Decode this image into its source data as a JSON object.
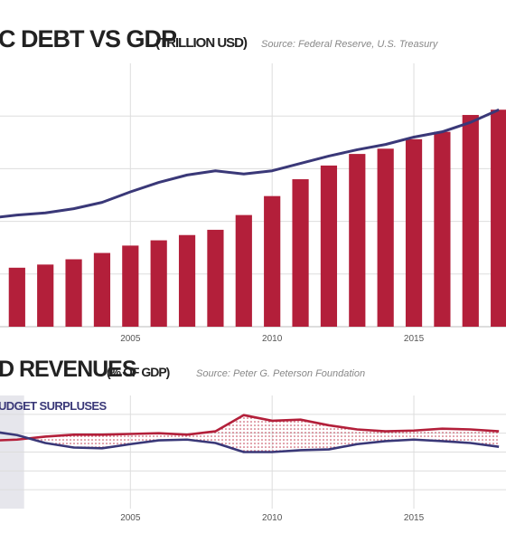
{
  "chart_data": [
    {
      "type": "bar_line",
      "title": "C DEBT VS GDP",
      "subtitle": "(TRILLION USD)",
      "source": "Source: Federal Reserve, U.S. Treasury",
      "x": [
        2000,
        2001,
        2002,
        2003,
        2004,
        2005,
        2006,
        2007,
        2008,
        2009,
        2010,
        2011,
        2012,
        2013,
        2014,
        2015,
        2016,
        2017,
        2018
      ],
      "series": [
        {
          "kind": "bar",
          "color": "#b31f3a",
          "values": [
            null,
            5.6,
            5.9,
            6.4,
            7.0,
            7.7,
            8.2,
            8.7,
            9.2,
            10.6,
            12.4,
            14.0,
            15.3,
            16.4,
            16.9,
            17.8,
            18.5,
            20.1,
            20.6
          ]
        },
        {
          "kind": "line",
          "color": "#3a3878",
          "values": [
            10.3,
            10.6,
            10.8,
            11.2,
            11.8,
            12.8,
            13.7,
            14.4,
            14.8,
            14.5,
            14.8,
            15.5,
            16.2,
            16.8,
            17.3,
            18.0,
            18.5,
            19.4,
            20.6
          ]
        }
      ],
      "xlim": [
        2000.4,
        2018.25
      ],
      "xticks": [
        2005,
        2010,
        2015
      ],
      "ylim": [
        0,
        25
      ],
      "gridlines": [
        0,
        5,
        10,
        15,
        20
      ]
    },
    {
      "type": "line",
      "title": "D REVENUES",
      "subtitle": "(% OF GDP)",
      "source": "Source: Peter G. Peterson Foundation",
      "annotation": "UDGET SURPLUSES",
      "shaded_region": [
        2000.4,
        2001.25
      ],
      "x": [
        2000,
        2001,
        2002,
        2003,
        2004,
        2005,
        2006,
        2007,
        2008,
        2009,
        2010,
        2011,
        2012,
        2013,
        2014,
        2015,
        2016,
        2017,
        2018
      ],
      "series": [
        {
          "color": "#b31f3a",
          "values": [
            18.0,
            18.3,
            19.1,
            19.6,
            19.6,
            19.8,
            20.0,
            19.6,
            20.5,
            24.8,
            23.3,
            23.6,
            22.1,
            21.0,
            20.5,
            20.7,
            21.2,
            21.0,
            20.5
          ]
        },
        {
          "color": "#3a3878",
          "values": [
            20.6,
            19.5,
            17.4,
            16.2,
            16.0,
            17.1,
            18.1,
            18.3,
            17.4,
            15.0,
            15.0,
            15.5,
            15.7,
            17.1,
            17.9,
            18.3,
            17.9,
            17.4,
            16.4
          ]
        }
      ],
      "xlim": [
        2000.4,
        2018.25
      ],
      "xticks": [
        2005,
        2010,
        2015
      ],
      "ylim": [
        0,
        30
      ],
      "gridlines": [
        5,
        10,
        15,
        20,
        25
      ]
    }
  ]
}
